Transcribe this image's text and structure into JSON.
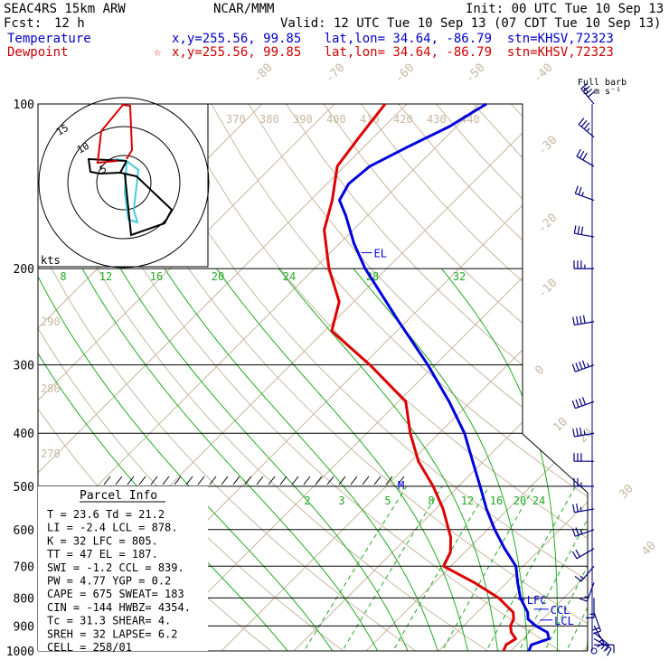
{
  "header": {
    "model": "SEAC4RS 15km ARW",
    "org": "NCAR/MMM",
    "init": "Init: 00 UTC Tue 10 Sep 13",
    "fcst_label": "Fcst:",
    "fcst_value": "12 h",
    "valid": "Valid: 12 UTC Tue 10 Sep 13 (07 CDT Tue 10 Sep 13)",
    "temp_label": "Temperature",
    "temp_info": "x,y=255.56, 99.85   lat,lon= 34.64, -86.79  stn=KHSV,72323",
    "dew_label": "Dewpoint",
    "dew_star": "☆",
    "dew_info": "x,y=255.56, 99.85   lat,lon= 34.64, -86.79  stn=KHSV,72323",
    "barb_title": "Full barb\n5 m s⁻¹"
  },
  "colors": {
    "temperature": "#0000dd",
    "dewpoint": "#dd0000",
    "theta": "#c8b8a0",
    "mixing_ratio": "#22aa22",
    "isobar": "#000000",
    "barbs": "#000080",
    "hodo_red": "#dd0000",
    "hodo_black": "#000000",
    "hodo_cyan": "#44ccdd"
  },
  "parcel_info": {
    "title": "Parcel Info",
    "lines": [
      "T  =   23.6 Td =  21.2",
      "LI =   -2.4 LCL =  878.",
      "K  =     32 LFC =  805.",
      "TT =     47 EL  =  187.",
      "SWI =  -1.2 CCL =  839.",
      "PW =   4.77 YGP =   0.2",
      "CAPE =  675 SWEAT=  183",
      "CIN =  -144 HWBZ= 4354.",
      "Tc =   31.3 SHEAR=   4.",
      "SREH =   32 LAPSE=  6.2",
      "CELL = 258/01"
    ]
  },
  "hodograph": {
    "ring_labels": [
      "5",
      "10",
      "15"
    ],
    "unit": "kts"
  },
  "chart_data": {
    "type": "skewt",
    "pressure_levels": [
      100,
      200,
      300,
      400,
      500,
      600,
      700,
      800,
      900,
      1000
    ],
    "pressure_labels": [
      "100",
      "200",
      "300",
      "400",
      "500",
      "600",
      "700",
      "800",
      "900",
      "1000"
    ],
    "temp_skew_labels": [
      "-80",
      "-70",
      "-60",
      "-50",
      "-40",
      "-30",
      "-20",
      "-10",
      "0",
      "10",
      "20",
      "30",
      "40"
    ],
    "theta_labels": [
      "370",
      "380",
      "390",
      "400",
      "410",
      "420",
      "430",
      "440"
    ],
    "theta_side_labels": [
      "290",
      "280",
      "270"
    ],
    "mixing_ratio_upper": [
      "8",
      "12",
      "16",
      "20",
      "24",
      "28",
      "32"
    ],
    "mixing_ratio_lower": [
      "2",
      "3",
      "5",
      "8",
      "12",
      "16",
      "20",
      "24"
    ],
    "levels": {
      "EL": {
        "label": "EL",
        "p": 187
      },
      "M": {
        "label": "M",
        "p": 500
      },
      "LFC": {
        "label": "LFC",
        "p": 805
      },
      "CCL": {
        "label": "CCL",
        "p": 839
      },
      "LCL": {
        "label": "LCL",
        "p": 878
      }
    },
    "temperature": {
      "name": "Temperature",
      "points": [
        {
          "p": 1000,
          "t": 22.5
        },
        {
          "p": 975,
          "t": 22.0
        },
        {
          "p": 950,
          "t": 23.6
        },
        {
          "p": 925,
          "t": 22.5
        },
        {
          "p": 900,
          "t": 20.0
        },
        {
          "p": 875,
          "t": 18.0
        },
        {
          "p": 850,
          "t": 17.0
        },
        {
          "p": 800,
          "t": 14.0
        },
        {
          "p": 750,
          "t": 11.5
        },
        {
          "p": 700,
          "t": 9.0
        },
        {
          "p": 650,
          "t": 5.0
        },
        {
          "p": 600,
          "t": 1.0
        },
        {
          "p": 550,
          "t": -3.0
        },
        {
          "p": 500,
          "t": -7.0
        },
        {
          "p": 450,
          "t": -11.5
        },
        {
          "p": 400,
          "t": -16.5
        },
        {
          "p": 350,
          "t": -23.0
        },
        {
          "p": 300,
          "t": -31.0
        },
        {
          "p": 250,
          "t": -41.0
        },
        {
          "p": 200,
          "t": -53.0
        },
        {
          "p": 180,
          "t": -58.0
        },
        {
          "p": 160,
          "t": -63.0
        },
        {
          "p": 150,
          "t": -66.0
        },
        {
          "p": 140,
          "t": -67.0
        },
        {
          "p": 130,
          "t": -66.5
        },
        {
          "p": 120,
          "t": -64.0
        },
        {
          "p": 110,
          "t": -61.0
        },
        {
          "p": 100,
          "t": -59.0
        }
      ]
    },
    "dewpoint": {
      "name": "Dewpoint",
      "points": [
        {
          "p": 1000,
          "t": 19.0
        },
        {
          "p": 975,
          "t": 18.5
        },
        {
          "p": 950,
          "t": 19.0
        },
        {
          "p": 925,
          "t": 17.5
        },
        {
          "p": 900,
          "t": 16.5
        },
        {
          "p": 875,
          "t": 16.0
        },
        {
          "p": 850,
          "t": 15.0
        },
        {
          "p": 800,
          "t": 11.0
        },
        {
          "p": 750,
          "t": 5.5
        },
        {
          "p": 700,
          "t": -1.0
        },
        {
          "p": 660,
          "t": -2.0
        },
        {
          "p": 620,
          "t": -4.0
        },
        {
          "p": 550,
          "t": -9.0
        },
        {
          "p": 500,
          "t": -13.5
        },
        {
          "p": 450,
          "t": -19.0
        },
        {
          "p": 400,
          "t": -24.0
        },
        {
          "p": 350,
          "t": -29.0
        },
        {
          "p": 300,
          "t": -39.0
        },
        {
          "p": 260,
          "t": -49.0
        },
        {
          "p": 230,
          "t": -52.0
        },
        {
          "p": 200,
          "t": -58.0
        },
        {
          "p": 170,
          "t": -64.0
        },
        {
          "p": 150,
          "t": -67.0
        },
        {
          "p": 130,
          "t": -71.0
        },
        {
          "p": 115,
          "t": -72.0
        },
        {
          "p": 100,
          "t": -73.0
        }
      ]
    },
    "wind_barbs": [
      {
        "p": 1000,
        "dir": 0,
        "spd": 0
      },
      {
        "p": 975,
        "dir": 90,
        "spd": 2
      },
      {
        "p": 950,
        "dir": 120,
        "spd": 3
      },
      {
        "p": 925,
        "dir": 130,
        "spd": 4
      },
      {
        "p": 900,
        "dir": 150,
        "spd": 3
      },
      {
        "p": 850,
        "dir": 160,
        "spd": 4
      },
      {
        "p": 800,
        "dir": 180,
        "spd": 3
      },
      {
        "p": 750,
        "dir": 200,
        "spd": 3
      },
      {
        "p": 700,
        "dir": 220,
        "spd": 3
      },
      {
        "p": 650,
        "dir": 240,
        "spd": 4
      },
      {
        "p": 600,
        "dir": 250,
        "spd": 5
      },
      {
        "p": 550,
        "dir": 260,
        "spd": 5
      },
      {
        "p": 500,
        "dir": 270,
        "spd": 5
      },
      {
        "p": 450,
        "dir": 270,
        "spd": 6
      },
      {
        "p": 400,
        "dir": 260,
        "spd": 7
      },
      {
        "p": 350,
        "dir": 250,
        "spd": 8
      },
      {
        "p": 300,
        "dir": 250,
        "spd": 9
      },
      {
        "p": 250,
        "dir": 260,
        "spd": 8
      },
      {
        "p": 200,
        "dir": 270,
        "spd": 7
      },
      {
        "p": 175,
        "dir": 280,
        "spd": 6
      },
      {
        "p": 150,
        "dir": 290,
        "spd": 5
      },
      {
        "p": 130,
        "dir": 300,
        "spd": 6
      },
      {
        "p": 115,
        "dir": 310,
        "spd": 7
      },
      {
        "p": 100,
        "dir": 320,
        "spd": 8
      }
    ]
  }
}
